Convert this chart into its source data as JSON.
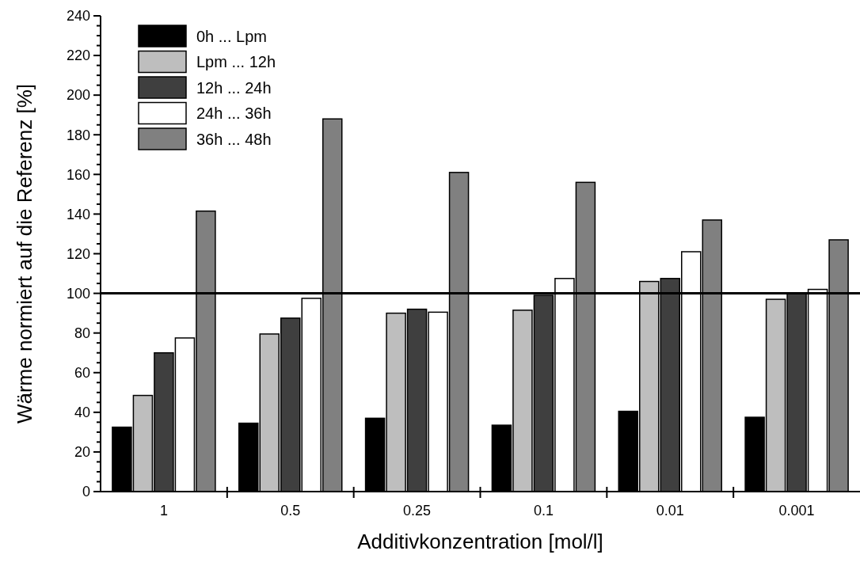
{
  "chart_data": {
    "type": "bar",
    "xlabel": "Additivkonzentration [mol/l]",
    "ylabel": "Wärme normiert auf die Referenz [%]",
    "categories": [
      "1",
      "0.5",
      "0.25",
      "0.1",
      "0.01",
      "0.001"
    ],
    "series": [
      {
        "name": "0h ... Lpm",
        "color": "#000000",
        "values": [
          32.5,
          34.5,
          37,
          33.5,
          40.5,
          37.5
        ]
      },
      {
        "name": "Lpm ... 12h",
        "color": "#bebebe",
        "values": [
          48.5,
          79.5,
          90,
          91.5,
          106,
          97
        ]
      },
      {
        "name": "12h ... 24h",
        "color": "#3f3f3f",
        "values": [
          70,
          87.5,
          92,
          99,
          107.5,
          100
        ]
      },
      {
        "name": "24h ... 36h",
        "color": "#ffffff",
        "values": [
          77.5,
          97.5,
          90.5,
          107.5,
          121,
          102
        ]
      },
      {
        "name": "36h ... 48h",
        "color": "#808080",
        "values": [
          141.5,
          188,
          161,
          156,
          137,
          127
        ]
      }
    ],
    "ylim": [
      0,
      240
    ],
    "yticks": [
      0,
      {
        "value": 5,
        "label": null
      },
      {
        "value": 10,
        "label": null
      },
      {
        "value": 15,
        "label": null
      },
      20,
      {
        "value": 25,
        "label": null
      },
      {
        "value": 30,
        "label": null
      },
      {
        "value": 35,
        "label": null
      },
      40,
      {
        "value": 45,
        "label": null
      },
      {
        "value": 50,
        "label": null
      },
      {
        "value": 55,
        "label": null
      },
      60,
      {
        "value": 65,
        "label": null
      },
      {
        "value": 70,
        "label": null
      },
      {
        "value": 75,
        "label": null
      },
      80,
      {
        "value": 85,
        "label": null
      },
      {
        "value": 90,
        "label": null
      },
      {
        "value": 95,
        "label": null
      },
      100,
      {
        "value": 105,
        "label": null
      },
      {
        "value": 110,
        "label": null
      },
      {
        "value": 115,
        "label": null
      },
      120,
      {
        "value": 125,
        "label": null
      },
      {
        "value": 130,
        "label": null
      },
      {
        "value": 135,
        "label": null
      },
      140,
      {
        "value": 145,
        "label": null
      },
      {
        "value": 150,
        "label": null
      },
      {
        "value": 155,
        "label": null
      },
      160,
      {
        "value": 165,
        "label": null
      },
      {
        "value": 170,
        "label": null
      },
      {
        "value": 175,
        "label": null
      },
      180,
      {
        "value": 185,
        "label": null
      },
      {
        "value": 190,
        "label": null
      },
      {
        "value": 195,
        "label": null
      },
      200,
      {
        "value": 205,
        "label": null
      },
      {
        "value": 210,
        "label": null
      },
      {
        "value": 215,
        "label": null
      },
      220,
      {
        "value": 225,
        "label": null
      },
      {
        "value": 230,
        "label": null
      },
      {
        "value": 235,
        "label": null
      },
      240
    ],
    "ref_lines": [
      {
        "axis": "y",
        "value": 100,
        "color": "#000000"
      }
    ],
    "legend": "top left",
    "grid": false
  }
}
